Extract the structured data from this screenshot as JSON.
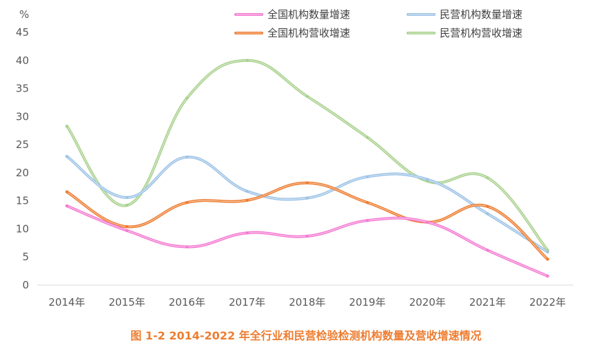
{
  "chart_data": {
    "type": "line",
    "title": "",
    "ylabel": "%",
    "xlabel": "",
    "ylim": [
      0,
      45
    ],
    "yticks": [
      0,
      5,
      10,
      15,
      20,
      25,
      30,
      35,
      40,
      45
    ],
    "grid": false,
    "legend_position": "top",
    "categories": [
      "2014年",
      "2015年",
      "2016年",
      "2017年",
      "2018年",
      "2019年",
      "2020年",
      "2021年",
      "2022年"
    ],
    "series": [
      {
        "name": "全国机构数量增速",
        "color": "#F47BD2",
        "values": [
          14.1,
          9.7,
          6.8,
          9.3,
          8.7,
          11.5,
          11.2,
          6.2,
          1.6
        ]
      },
      {
        "name": "民营机构数量增速",
        "color": "#9DC3E6",
        "values": [
          22.9,
          15.6,
          22.8,
          16.7,
          15.5,
          19.3,
          18.8,
          12.7,
          5.9
        ]
      },
      {
        "name": "全国机构营收增速",
        "color": "#ED7D31",
        "values": [
          16.6,
          10.4,
          14.7,
          15.1,
          18.2,
          14.7,
          11.2,
          14.0,
          4.6
        ]
      },
      {
        "name": "民营机构营收增速",
        "color": "#A9D18E",
        "values": [
          28.3,
          14.2,
          33.3,
          40.0,
          33.6,
          26.3,
          18.5,
          19.1,
          6.2
        ]
      }
    ]
  },
  "caption": "图 1-2    2014-2022 年全行业和民营检验检测机构数量及营收增速情况"
}
